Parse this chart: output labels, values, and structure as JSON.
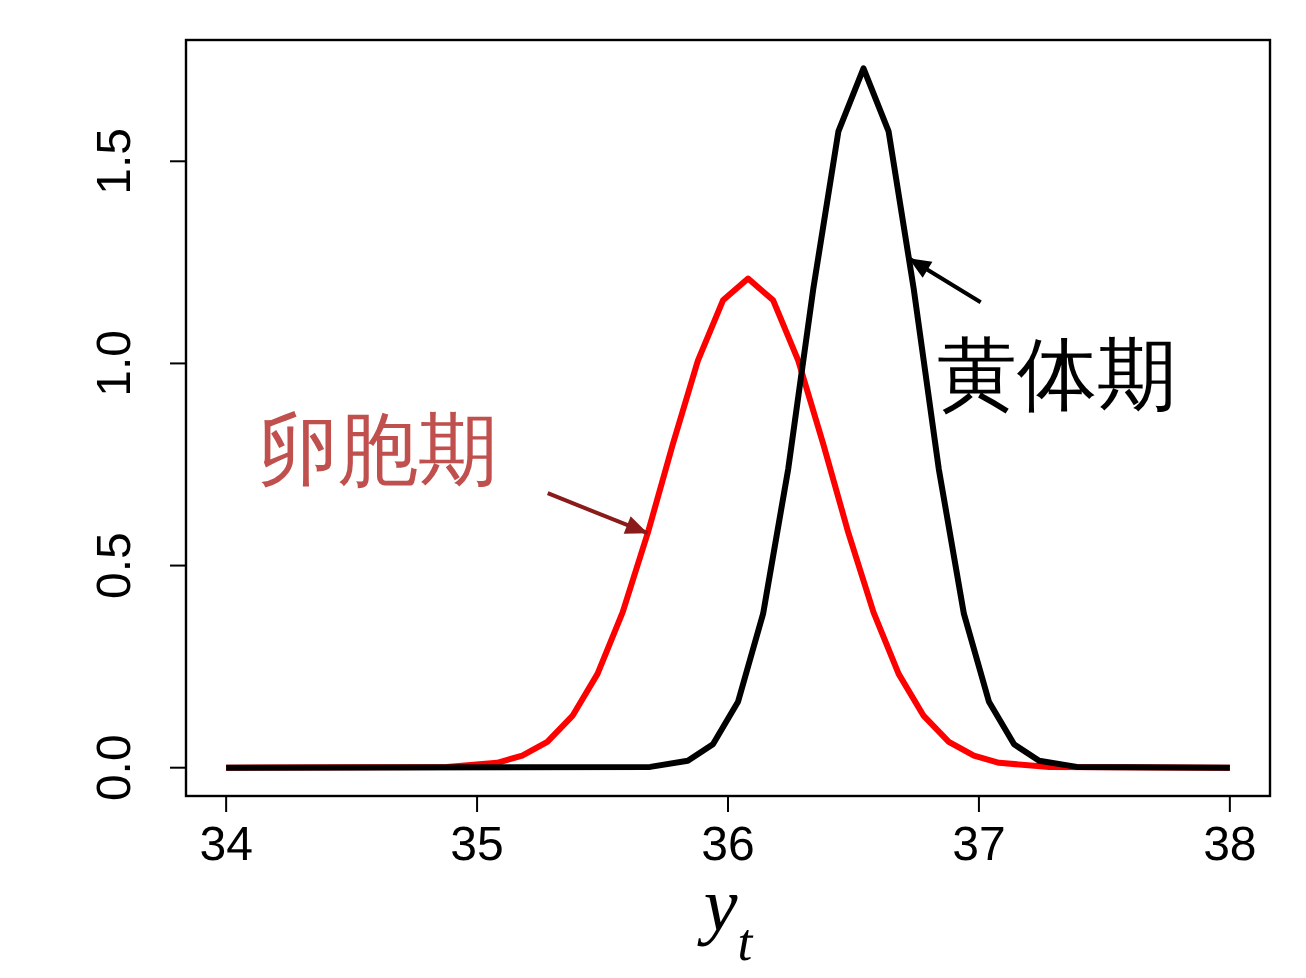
{
  "chart_data": {
    "type": "line",
    "xlabel": "y$_{t}$",
    "xlim": [
      33.84,
      38.16
    ],
    "ylim": [
      -0.07,
      1.8
    ],
    "xticks": [
      34,
      35,
      36,
      37,
      38
    ],
    "yticks": [
      {
        "value": 0,
        "label": "0.0"
      },
      {
        "value": 0.5,
        "label": "0.5"
      },
      {
        "value": 1,
        "label": "1.0"
      },
      {
        "value": 1.5,
        "label": "1.5"
      }
    ],
    "grid": false,
    "marker": "none",
    "line_style": "solid",
    "series": [
      {
        "color": "#ff0000",
        "x": [
          34,
          34.88,
          35.08,
          35.18,
          35.28,
          35.38,
          35.48,
          35.58,
          35.68,
          35.78,
          35.88,
          35.98,
          36.08,
          36.18,
          36.28,
          36.38,
          36.48,
          36.58,
          36.68,
          36.78,
          36.88,
          36.98,
          37.08,
          37.28,
          38
        ],
        "values": [
          0,
          0.002,
          0.012,
          0.03,
          0.064,
          0.128,
          0.232,
          0.384,
          0.58,
          0.8,
          1.007,
          1.156,
          1.21,
          1.156,
          1.007,
          0.8,
          0.58,
          0.384,
          0.232,
          0.128,
          0.064,
          0.03,
          0.012,
          0.002,
          0
        ]
      },
      {
        "color": "#000000",
        "x": [
          34,
          35.69,
          35.84,
          35.94,
          36.04,
          36.14,
          36.24,
          36.34,
          36.44,
          36.54,
          36.64,
          36.74,
          36.84,
          36.94,
          37.04,
          37.14,
          37.24,
          37.39,
          38
        ],
        "values": [
          0,
          0.002,
          0.017,
          0.058,
          0.163,
          0.381,
          0.739,
          1.185,
          1.574,
          1.73,
          1.574,
          1.185,
          0.739,
          0.381,
          0.163,
          0.058,
          0.017,
          0.002,
          0
        ]
      }
    ],
    "annotations": [
      {
        "text": "卵胞期",
        "x": 35.68,
        "y": 0.58
      },
      {
        "text": "黄体期",
        "x": 36.72,
        "y": 1.26
      }
    ]
  }
}
